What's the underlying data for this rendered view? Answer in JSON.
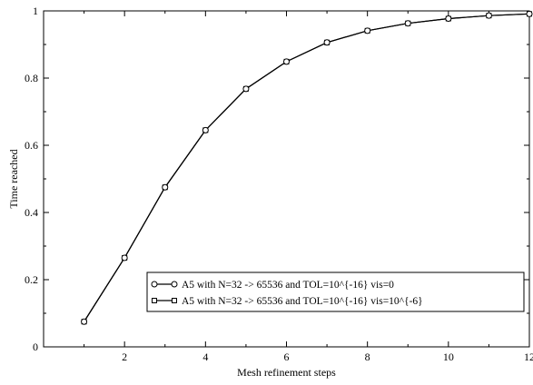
{
  "chart_data": {
    "type": "line",
    "xlabel": "Mesh refinement steps",
    "ylabel": "Time reached",
    "xlim": [
      0,
      12
    ],
    "ylim": [
      0,
      1
    ],
    "x_ticks": [
      2,
      4,
      6,
      8,
      10,
      12
    ],
    "y_ticks": [
      0,
      0.2,
      0.4,
      0.6,
      0.8,
      1
    ],
    "grid": false,
    "legend_position": "bottom-right",
    "x": [
      1,
      2,
      3,
      4,
      5,
      6,
      7,
      8,
      9,
      10,
      11,
      12
    ],
    "series": [
      {
        "name": "A5 with  N=32 -> 65536 and TOL=10^{-16} vis=0",
        "marker": "circle",
        "color": "#000000",
        "values": [
          0.075,
          0.265,
          0.475,
          0.645,
          0.768,
          0.849,
          0.906,
          0.941,
          0.963,
          0.977,
          0.986,
          0.991
        ]
      },
      {
        "name": "A5 with  N=32 -> 65536 and TOL=10^{-16} vis=10^{-6}",
        "marker": "square",
        "color": "#000000",
        "values": [
          0.075,
          0.265,
          0.475,
          0.645,
          0.768,
          0.849,
          0.906,
          0.941,
          0.963,
          0.977,
          0.986,
          0.991
        ]
      }
    ]
  }
}
